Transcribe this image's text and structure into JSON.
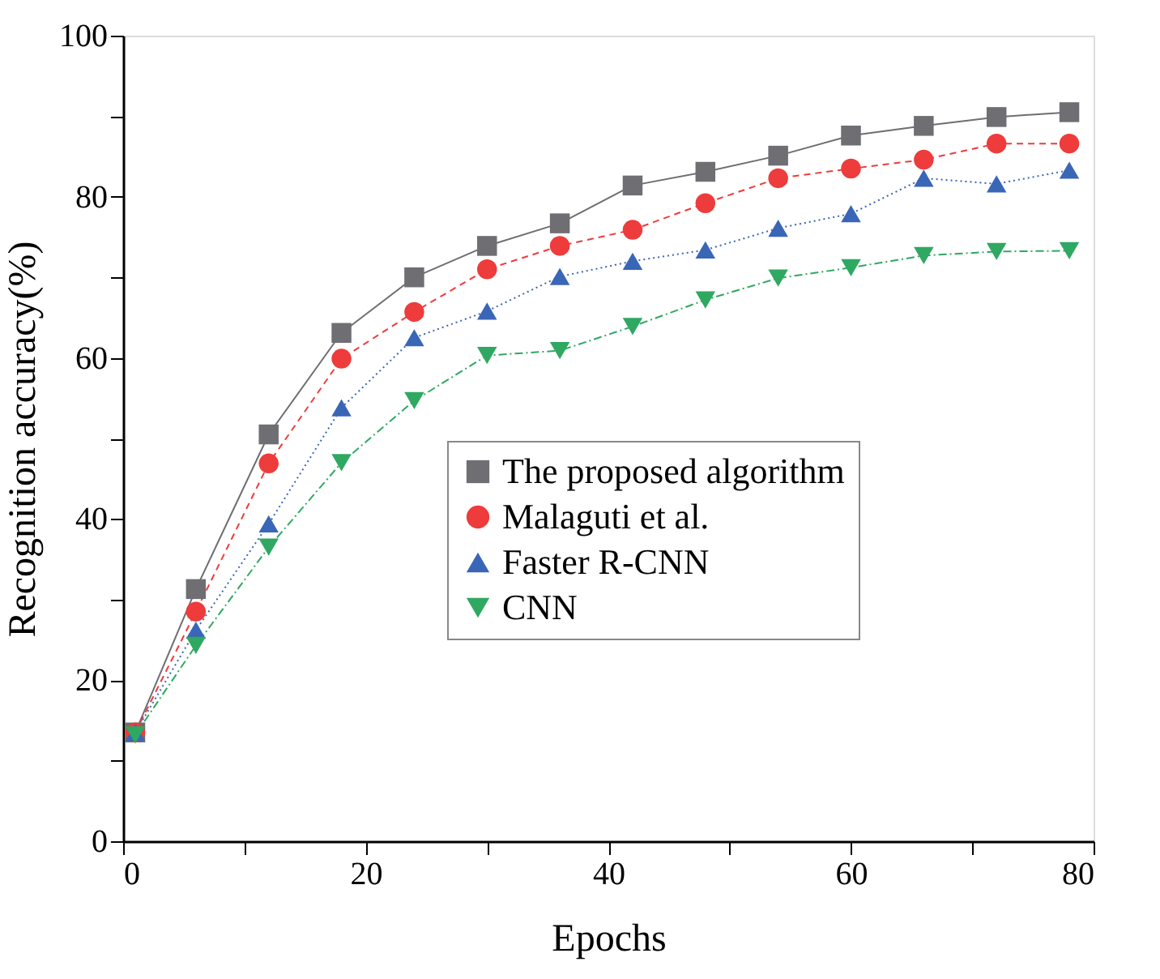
{
  "chart_data": {
    "type": "line",
    "xlabel": "Epochs",
    "ylabel": "Recognition accuracy(%)",
    "x": [
      1,
      6,
      12,
      18,
      24,
      30,
      36,
      42,
      48,
      54,
      60,
      66,
      72,
      78
    ],
    "series": [
      {
        "name": "The proposed algorithm",
        "color": "#6e6e73",
        "marker": "square",
        "line_style": "solid",
        "values": [
          13.5,
          31.3,
          50.5,
          63.1,
          70.0,
          73.9,
          76.7,
          81.4,
          83.1,
          85.1,
          87.6,
          88.8,
          89.9,
          90.5
        ]
      },
      {
        "name": "Malaguti et al.",
        "color": "#ee3b3b",
        "marker": "circle",
        "line_style": "dashed",
        "values": [
          13.5,
          28.5,
          46.9,
          59.9,
          65.7,
          71.0,
          73.9,
          75.9,
          79.2,
          82.3,
          83.5,
          84.6,
          86.6,
          86.6
        ]
      },
      {
        "name": "Faster R-CNN",
        "color": "#3a66b7",
        "marker": "triangle",
        "line_style": "dotted",
        "values": [
          13.5,
          26.2,
          39.4,
          53.8,
          62.5,
          65.8,
          70.1,
          72.0,
          73.4,
          76.1,
          77.9,
          82.3,
          81.6,
          83.3
        ]
      },
      {
        "name": "CNN",
        "color": "#2fa862",
        "marker": "triangle-down",
        "line_style": "dashdot",
        "values": [
          13.2,
          24.3,
          36.5,
          47.0,
          54.7,
          60.3,
          60.9,
          63.9,
          67.2,
          69.9,
          71.2,
          72.7,
          73.2,
          73.3
        ]
      }
    ],
    "xlim": [
      0,
      80
    ],
    "xticks": [
      0,
      {
        "value": 10,
        "label": null
      },
      20,
      {
        "value": 30,
        "label": null
      },
      40,
      {
        "value": 50,
        "label": null
      },
      60,
      {
        "value": 70,
        "label": null
      },
      80
    ],
    "ylim": [
      0,
      100
    ],
    "yticks": [
      0,
      {
        "value": 10,
        "label": null
      },
      20,
      {
        "value": 30,
        "label": null
      },
      40,
      {
        "value": 50,
        "label": null
      },
      60,
      {
        "value": 70,
        "label": null
      },
      80,
      {
        "value": 90,
        "label": null
      },
      100
    ],
    "grid": false,
    "legend": "right"
  }
}
